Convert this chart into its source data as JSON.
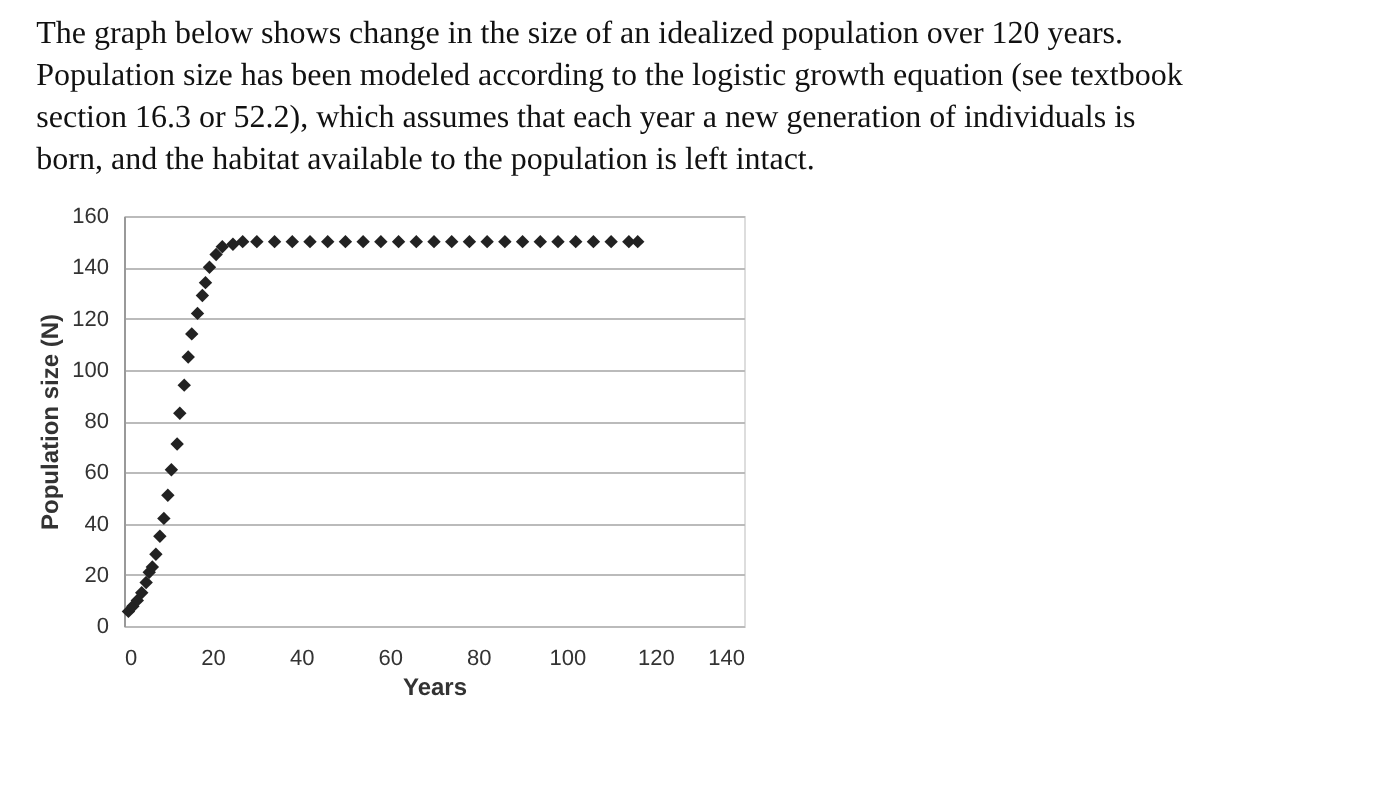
{
  "chart_data": {
    "type": "scatter",
    "title": "The graph below shows change in the size of an idealized population over 120 years. Population size has been modeled according to the logistic growth equation (see textbook section 16.3 or 52.2), which assumes that each year a new generation of individuals is born, and the habitat available to the population is left intact.",
    "xlabel": "Years",
    "ylabel": "Population size (N)",
    "x": [
      1,
      2,
      3,
      4,
      5,
      5.7,
      6.4,
      7.2,
      8.1,
      9,
      9.9,
      10.7,
      12,
      12.6,
      13.6,
      14.5,
      15.3,
      16.6,
      17.7,
      18.4,
      19.3,
      20.8,
      22.2,
      24.6,
      26.8,
      30,
      34,
      38,
      42,
      46,
      50,
      54,
      58,
      62,
      66,
      70,
      74,
      78,
      82,
      86,
      90,
      94,
      98,
      102,
      106,
      110,
      114,
      116
    ],
    "series": [
      {
        "color": "#222222",
        "values": [
          5.7,
          7.7,
          10,
          13,
          17,
          21,
          23,
          28,
          35,
          42,
          51,
          61,
          71,
          83,
          94,
          105,
          114,
          122,
          129,
          134,
          140,
          145,
          148,
          149,
          150,
          150,
          150,
          150,
          150,
          150,
          150,
          150,
          150,
          150,
          150,
          150,
          150,
          150,
          150,
          150,
          150,
          150,
          150,
          150,
          150,
          150,
          150,
          150
        ]
      }
    ],
    "marker": "diamond",
    "xlim": [
      0,
      140
    ],
    "ylim": [
      0,
      160
    ],
    "xticks": [
      0,
      20,
      40,
      60,
      80,
      100,
      120,
      140
    ],
    "yticks": [
      0,
      20,
      40,
      60,
      80,
      100,
      120,
      140,
      160
    ],
    "grid": "y",
    "legend": false
  }
}
